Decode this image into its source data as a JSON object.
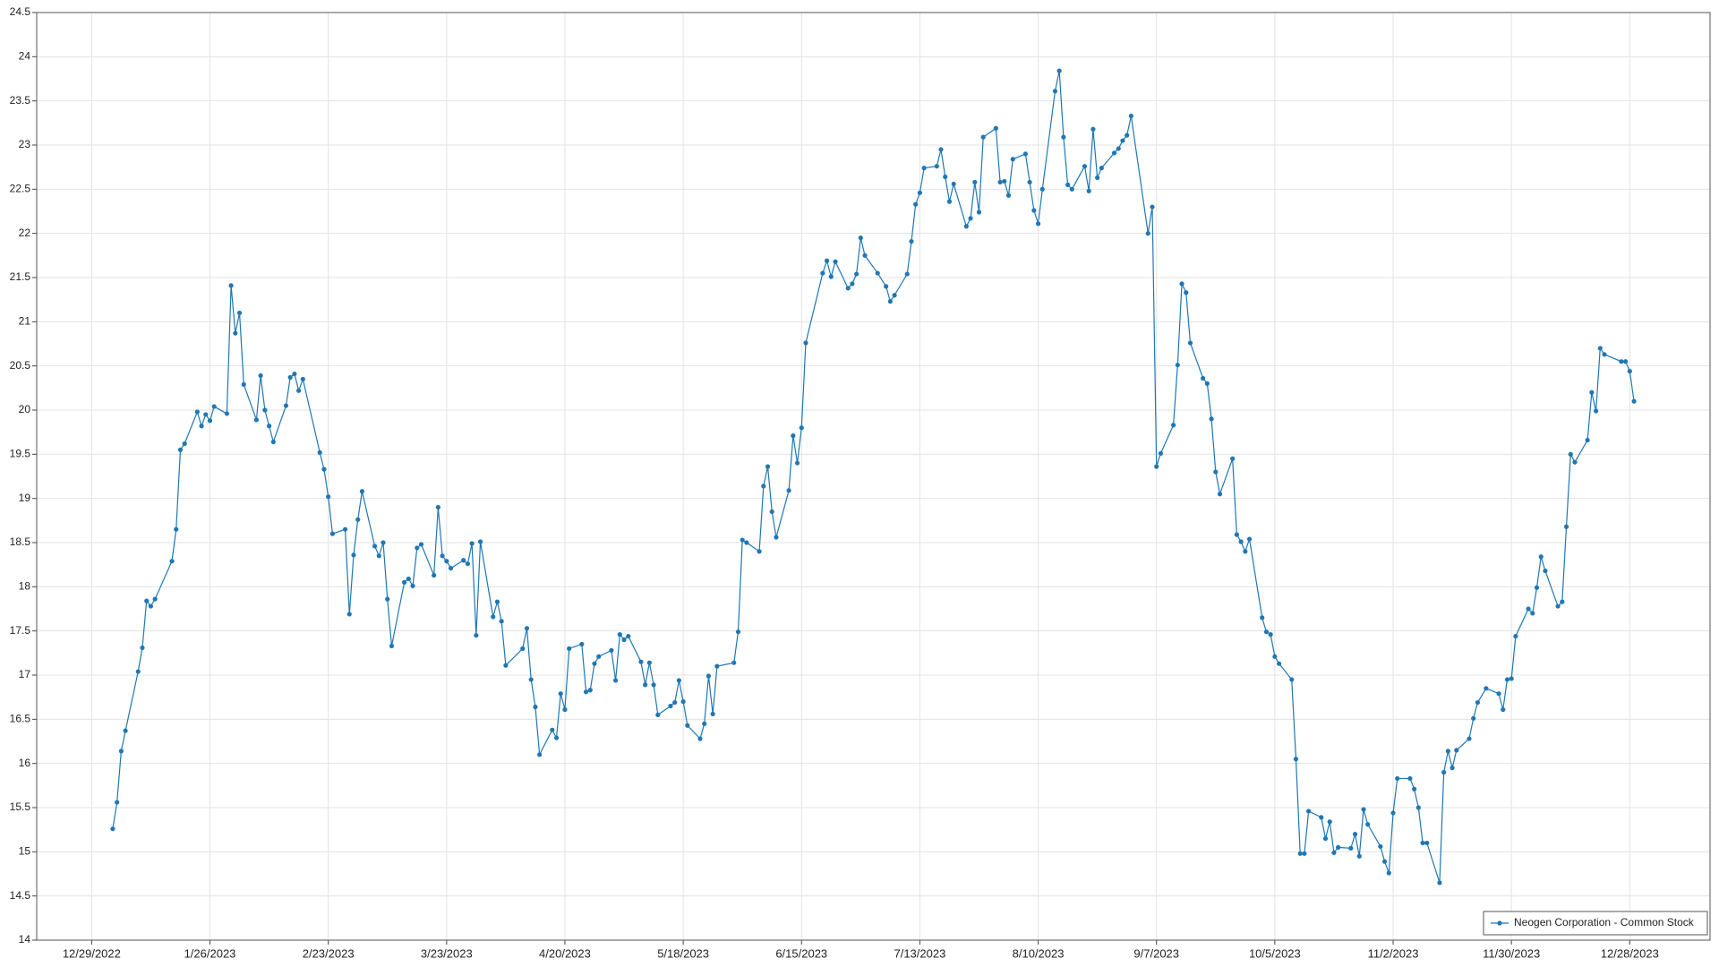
{
  "chart_data": {
    "type": "line",
    "x": [
      "1/3/2023",
      "1/4/2023",
      "1/5/2023",
      "1/6/2023",
      "1/9/2023",
      "1/10/2023",
      "1/11/2023",
      "1/12/2023",
      "1/13/2023",
      "1/17/2023",
      "1/18/2023",
      "1/19/2023",
      "1/20/2023",
      "1/23/2023",
      "1/24/2023",
      "1/25/2023",
      "1/26/2023",
      "1/27/2023",
      "1/30/2023",
      "1/31/2023",
      "2/1/2023",
      "2/2/2023",
      "2/3/2023",
      "2/6/2023",
      "2/7/2023",
      "2/8/2023",
      "2/9/2023",
      "2/10/2023",
      "2/13/2023",
      "2/14/2023",
      "2/15/2023",
      "2/16/2023",
      "2/17/2023",
      "2/21/2023",
      "2/22/2023",
      "2/23/2023",
      "2/24/2023",
      "2/27/2023",
      "2/28/2023",
      "3/1/2023",
      "3/2/2023",
      "3/3/2023",
      "3/6/2023",
      "3/7/2023",
      "3/8/2023",
      "3/9/2023",
      "3/10/2023",
      "3/13/2023",
      "3/14/2023",
      "3/15/2023",
      "3/16/2023",
      "3/17/2023",
      "3/20/2023",
      "3/21/2023",
      "3/22/2023",
      "3/23/2023",
      "3/24/2023",
      "3/27/2023",
      "3/28/2023",
      "3/29/2023",
      "3/30/2023",
      "3/31/2023",
      "4/3/2023",
      "4/4/2023",
      "4/5/2023",
      "4/6/2023",
      "4/10/2023",
      "4/11/2023",
      "4/12/2023",
      "4/13/2023",
      "4/14/2023",
      "4/17/2023",
      "4/18/2023",
      "4/19/2023",
      "4/20/2023",
      "4/21/2023",
      "4/24/2023",
      "4/25/2023",
      "4/26/2023",
      "4/27/2023",
      "4/28/2023",
      "5/1/2023",
      "5/2/2023",
      "5/3/2023",
      "5/4/2023",
      "5/5/2023",
      "5/8/2023",
      "5/9/2023",
      "5/10/2023",
      "5/11/2023",
      "5/12/2023",
      "5/15/2023",
      "5/16/2023",
      "5/17/2023",
      "5/18/2023",
      "5/19/2023",
      "5/22/2023",
      "5/23/2023",
      "5/24/2023",
      "5/25/2023",
      "5/26/2023",
      "5/30/2023",
      "5/31/2023",
      "6/1/2023",
      "6/2/2023",
      "6/5/2023",
      "6/6/2023",
      "6/7/2023",
      "6/8/2023",
      "6/9/2023",
      "6/12/2023",
      "6/13/2023",
      "6/14/2023",
      "6/15/2023",
      "6/16/2023",
      "6/20/2023",
      "6/21/2023",
      "6/22/2023",
      "6/23/2023",
      "6/26/2023",
      "6/27/2023",
      "6/28/2023",
      "6/29/2023",
      "6/30/2023",
      "7/3/2023",
      "7/5/2023",
      "7/6/2023",
      "7/7/2023",
      "7/10/2023",
      "7/11/2023",
      "7/12/2023",
      "7/13/2023",
      "7/14/2023",
      "7/17/2023",
      "7/18/2023",
      "7/19/2023",
      "7/20/2023",
      "7/21/2023",
      "7/24/2023",
      "7/25/2023",
      "7/26/2023",
      "7/27/2023",
      "7/28/2023",
      "7/31/2023",
      "8/1/2023",
      "8/2/2023",
      "8/3/2023",
      "8/4/2023",
      "8/7/2023",
      "8/8/2023",
      "8/9/2023",
      "8/10/2023",
      "8/11/2023",
      "8/14/2023",
      "8/15/2023",
      "8/16/2023",
      "8/17/2023",
      "8/18/2023",
      "8/21/2023",
      "8/22/2023",
      "8/23/2023",
      "8/24/2023",
      "8/25/2023",
      "8/28/2023",
      "8/29/2023",
      "8/30/2023",
      "8/31/2023",
      "9/1/2023",
      "9/5/2023",
      "9/6/2023",
      "9/7/2023",
      "9/8/2023",
      "9/11/2023",
      "9/12/2023",
      "9/13/2023",
      "9/14/2023",
      "9/15/2023",
      "9/18/2023",
      "9/19/2023",
      "9/20/2023",
      "9/21/2023",
      "9/22/2023",
      "9/25/2023",
      "9/26/2023",
      "9/27/2023",
      "9/28/2023",
      "9/29/2023",
      "10/2/2023",
      "10/3/2023",
      "10/4/2023",
      "10/5/2023",
      "10/6/2023",
      "10/9/2023",
      "10/10/2023",
      "10/11/2023",
      "10/12/2023",
      "10/13/2023",
      "10/16/2023",
      "10/17/2023",
      "10/18/2023",
      "10/19/2023",
      "10/20/2023",
      "10/23/2023",
      "10/24/2023",
      "10/25/2023",
      "10/26/2023",
      "10/27/2023",
      "10/30/2023",
      "10/31/2023",
      "11/1/2023",
      "11/2/2023",
      "11/3/2023",
      "11/6/2023",
      "11/7/2023",
      "11/8/2023",
      "11/9/2023",
      "11/10/2023",
      "11/13/2023",
      "11/14/2023",
      "11/15/2023",
      "11/16/2023",
      "11/17/2023",
      "11/20/2023",
      "11/21/2023",
      "11/22/2023",
      "11/24/2023",
      "11/27/2023",
      "11/28/2023",
      "11/29/2023",
      "11/30/2023",
      "12/1/2023",
      "12/4/2023",
      "12/5/2023",
      "12/6/2023",
      "12/7/2023",
      "12/8/2023",
      "12/11/2023",
      "12/12/2023",
      "12/13/2023",
      "12/14/2023",
      "12/15/2023",
      "12/18/2023",
      "12/19/2023",
      "12/20/2023",
      "12/21/2023",
      "12/22/2023",
      "12/26/2023",
      "12/27/2023",
      "12/28/2023",
      "12/29/2023"
    ],
    "series": [
      {
        "name": "Neogen Corporation - Common Stock",
        "color": "#1f77b4",
        "values": [
          15.26,
          15.56,
          16.14,
          16.37,
          17.04,
          17.31,
          17.84,
          17.78,
          17.86,
          18.29,
          18.65,
          19.55,
          19.62,
          19.98,
          19.82,
          19.95,
          19.88,
          20.04,
          19.96,
          21.41,
          20.87,
          21.1,
          20.29,
          19.89,
          20.39,
          20.0,
          19.82,
          19.64,
          20.05,
          20.37,
          20.41,
          20.22,
          20.35,
          19.52,
          19.33,
          19.02,
          18.6,
          18.65,
          17.69,
          18.36,
          18.76,
          19.08,
          18.46,
          18.35,
          18.5,
          17.86,
          17.33,
          18.05,
          18.09,
          18.01,
          18.44,
          18.48,
          18.13,
          18.9,
          18.35,
          18.29,
          18.21,
          18.3,
          18.26,
          18.49,
          17.45,
          18.51,
          17.66,
          17.83,
          17.61,
          17.11,
          17.3,
          17.53,
          16.95,
          16.64,
          16.1,
          16.38,
          16.29,
          16.79,
          16.61,
          17.3,
          17.35,
          16.81,
          16.83,
          17.13,
          17.21,
          17.28,
          16.94,
          17.46,
          17.4,
          17.44,
          17.15,
          16.89,
          17.14,
          16.89,
          16.55,
          16.65,
          16.69,
          16.94,
          16.7,
          16.43,
          16.28,
          16.45,
          16.99,
          16.56,
          17.1,
          17.14,
          17.49,
          18.53,
          18.5,
          18.4,
          19.14,
          19.36,
          18.85,
          18.56,
          19.09,
          19.71,
          19.4,
          19.8,
          20.76,
          21.55,
          21.69,
          21.51,
          21.68,
          21.38,
          21.43,
          21.54,
          21.95,
          21.75,
          21.55,
          21.4,
          21.23,
          21.3,
          21.54,
          21.91,
          22.33,
          22.46,
          22.74,
          22.76,
          22.95,
          22.64,
          22.36,
          22.56,
          22.08,
          22.17,
          22.58,
          22.24,
          23.09,
          23.19,
          22.58,
          22.59,
          22.43,
          22.84,
          22.9,
          22.58,
          22.26,
          22.11,
          22.5,
          23.61,
          23.84,
          23.09,
          22.55,
          22.5,
          22.76,
          22.48,
          23.18,
          22.63,
          22.74,
          22.91,
          22.96,
          23.05,
          23.11,
          23.33,
          22.0,
          22.3,
          19.36,
          19.51,
          19.83,
          20.51,
          21.43,
          21.33,
          20.76,
          20.36,
          20.3,
          19.9,
          19.3,
          19.05,
          19.45,
          18.59,
          18.51,
          18.4,
          18.54,
          17.65,
          17.49,
          17.46,
          17.21,
          17.13,
          16.95,
          16.05,
          14.98,
          14.98,
          15.46,
          15.39,
          15.15,
          15.34,
          14.99,
          15.05,
          15.04,
          15.2,
          14.95,
          15.48,
          15.31,
          15.06,
          14.89,
          14.76,
          15.44,
          15.83,
          15.83,
          15.71,
          15.5,
          15.1,
          15.1,
          14.65,
          15.9,
          16.14,
          15.95,
          16.15,
          16.28,
          16.51,
          16.69,
          16.85,
          16.79,
          16.61,
          16.95,
          16.96,
          17.44,
          17.75,
          17.7,
          17.99,
          18.34,
          18.18,
          17.78,
          17.83,
          18.68,
          19.5,
          19.41,
          19.66,
          20.2,
          19.99,
          20.7,
          20.63,
          20.55,
          20.55,
          20.44,
          20.1
        ]
      }
    ],
    "xlim": [
      "12/16/2022",
      "1/16/2024"
    ],
    "xticks": [
      "12/29/2022",
      "1/26/2023",
      "2/23/2023",
      "3/23/2023",
      "4/20/2023",
      "5/18/2023",
      "6/15/2023",
      "7/13/2023",
      "8/10/2023",
      "9/7/2023",
      "10/5/2023",
      "11/2/2023",
      "11/30/2023",
      "12/28/2023"
    ],
    "ylim": [
      14,
      24.5
    ],
    "yticks": [
      14,
      14.5,
      15,
      15.5,
      16,
      16.5,
      17,
      17.5,
      18,
      18.5,
      19,
      19.5,
      20,
      20.5,
      21,
      21.5,
      22,
      22.5,
      23,
      23.5,
      24,
      24.5
    ],
    "grid": true,
    "legend": "lower right"
  }
}
